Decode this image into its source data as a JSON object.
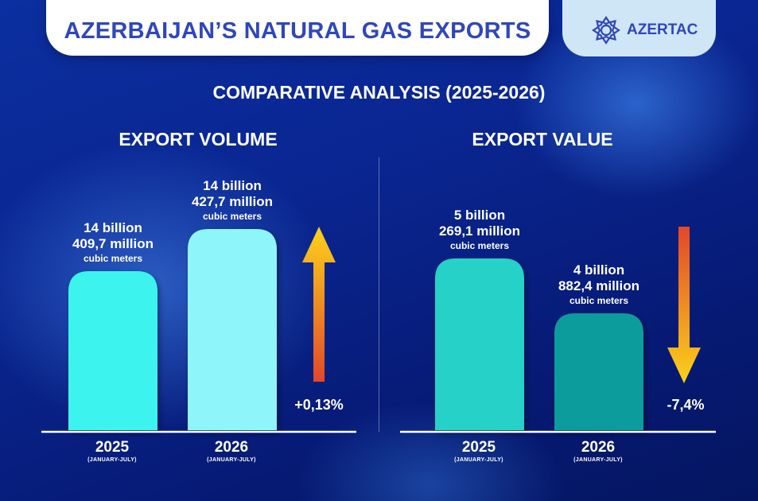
{
  "header": {
    "title": "AZERBAIJAN’S NATURAL GAS EXPORTS",
    "logo_text": "AZERTAC",
    "logo_icon": "azertac-emblem-icon"
  },
  "subtitle": "COMPARATIVE ANALYSIS (2025-2026)",
  "colors": {
    "title_text": "#2f47b8",
    "volume_2025_bar": "#3cf3ee",
    "volume_2026_bar": "#8ef6fb",
    "value_2025_bar": "#26d1c8",
    "value_2026_bar": "#0a9c9c",
    "arrow_up": [
      "#e2472a",
      "#fbd21a"
    ],
    "arrow_down": [
      "#e2472a",
      "#fbd21a"
    ]
  },
  "chart_data": [
    {
      "type": "bar",
      "title": "EXPORT VOLUME",
      "categories": [
        "2025",
        "2026"
      ],
      "category_sublabels": [
        "(JANUARY-JULY)",
        "(JANUARY-JULY)"
      ],
      "values": [
        14409.7,
        14427.7
      ],
      "ylabel": "",
      "data_labels": [
        {
          "line1": "14 billion",
          "line2": "409,7 million",
          "unit": "cubic meters"
        },
        {
          "line1": "14 billion",
          "line2": "427,7 million",
          "unit": "cubic meters"
        }
      ],
      "change": "+0,13%",
      "trend": "up"
    },
    {
      "type": "bar",
      "title": "EXPORT VALUE",
      "categories": [
        "2025",
        "2026"
      ],
      "category_sublabels": [
        "(JANUARY-JULY)",
        "(JANUARY-JULY)"
      ],
      "values": [
        5269.1,
        4882.4
      ],
      "ylabel": "",
      "data_labels": [
        {
          "line1": "5 billion",
          "line2": "269,1 million",
          "unit": "cubic meters"
        },
        {
          "line1": "4 billion",
          "line2": "882,4 million",
          "unit": "cubic meters"
        }
      ],
      "change": "-7,4%",
      "trend": "down"
    }
  ]
}
